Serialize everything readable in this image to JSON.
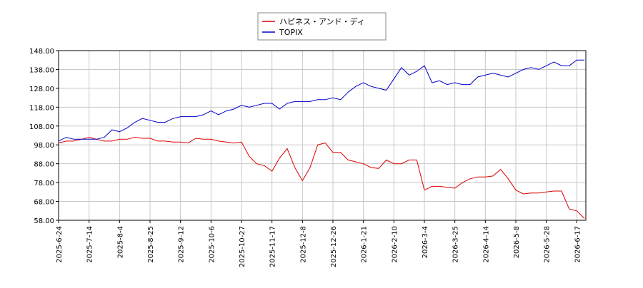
{
  "chart_data": {
    "type": "line",
    "categories": [
      "2025-6-24",
      null,
      null,
      null,
      "2025-7-14",
      null,
      null,
      null,
      "2025-8-4",
      null,
      null,
      null,
      "2025-8-25",
      null,
      null,
      null,
      "2025-9-12",
      null,
      null,
      null,
      "2025-10-6",
      null,
      null,
      null,
      "2025-10-27",
      null,
      null,
      null,
      "2025-11-17",
      null,
      null,
      null,
      "2025-12-8",
      null,
      null,
      null,
      "2025-12-26",
      null,
      null,
      null,
      "2026-1-21",
      null,
      null,
      null,
      "2026-2-10",
      null,
      null,
      null,
      "2026-3-4",
      null,
      null,
      null,
      "2026-3-25",
      null,
      null,
      null,
      "2026-4-14",
      null,
      null,
      null,
      "2026-5-8",
      null,
      null,
      null,
      "2026-5-28",
      null,
      null,
      null,
      "2026-6-17",
      null
    ],
    "series": [
      {
        "name": "ハピネス・アンド・ディ",
        "color": "#dd0000",
        "values": [
          99,
          100,
          100,
          101,
          102,
          101,
          100,
          100,
          101,
          101,
          102,
          101.5,
          101.5,
          100,
          100,
          99.5,
          99.5,
          99,
          101.5,
          101,
          101,
          100,
          99.5,
          99,
          99.5,
          92,
          88,
          87,
          84,
          91,
          96,
          86,
          79,
          86,
          98,
          99,
          94,
          94,
          90,
          89,
          88,
          86,
          85.5,
          90,
          88,
          88,
          90,
          90,
          74,
          76,
          76,
          75.5,
          75,
          78,
          80,
          81,
          81,
          81.5,
          85,
          80,
          74,
          72,
          72.5,
          72.5,
          73,
          73.5,
          73.5,
          64,
          63,
          59
        ]
      },
      {
        "name": "TOPIX",
        "color": "#0000cc",
        "values": [
          100,
          102,
          101,
          101,
          101,
          101,
          102,
          106,
          105,
          107,
          110,
          112,
          111,
          110,
          110,
          112,
          113,
          113,
          113,
          114,
          116,
          114,
          116,
          117,
          119,
          118,
          119,
          120,
          120,
          117,
          120,
          121,
          121,
          121,
          122,
          122,
          123,
          122,
          126,
          129,
          131,
          129,
          128,
          127,
          133,
          139,
          135,
          137,
          140,
          131,
          132,
          130,
          131,
          130,
          130,
          134,
          135,
          136,
          135,
          134,
          136,
          138,
          139,
          138,
          140,
          142,
          140,
          140,
          143,
          143
        ]
      }
    ],
    "ylim": [
      58,
      148
    ],
    "yticks": [
      {
        "value": 58,
        "label": "58.00"
      },
      {
        "value": 68,
        "label": "68.00"
      },
      {
        "value": 78,
        "label": "78.00"
      },
      {
        "value": 88,
        "label": "88.00"
      },
      {
        "value": 98,
        "label": "98.00"
      },
      {
        "value": 108,
        "label": "108.00"
      },
      {
        "value": 118,
        "label": "118.00"
      },
      {
        "value": 128,
        "label": "128.00"
      },
      {
        "value": 138,
        "label": "138.00"
      },
      {
        "value": 148,
        "label": "148.00"
      }
    ],
    "grid": true,
    "legend": "top"
  }
}
